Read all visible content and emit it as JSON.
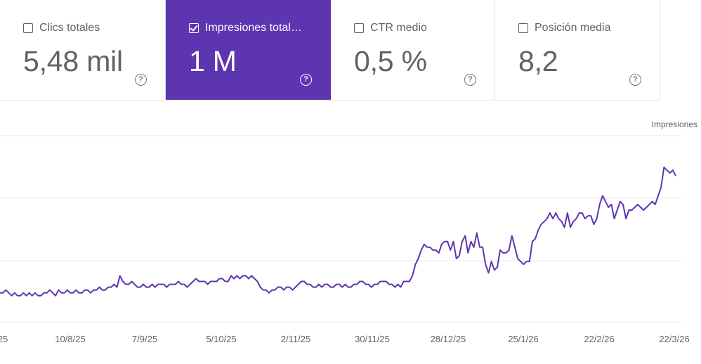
{
  "metrics": [
    {
      "label": "Clics totales",
      "value": "5,48 mil",
      "checked": false
    },
    {
      "label": "Impresiones total…",
      "value": "1 M",
      "checked": true
    },
    {
      "label": "CTR medio",
      "value": "0,5 %",
      "checked": false
    },
    {
      "label": "Posición media",
      "value": "8,2",
      "checked": false
    }
  ],
  "colors": {
    "accent": "#5e35b1",
    "line": "#5e35b1",
    "grid": "#e8e8e8",
    "text": "#5f6368"
  },
  "chart_data": {
    "type": "line",
    "series_label": "Impresiones",
    "x_tick_labels": [
      "25",
      "10/8/25",
      "7/9/25",
      "5/10/25",
      "2/11/25",
      "30/11/25",
      "28/12/25",
      "25/1/26",
      "22/2/26",
      "22/3/26"
    ],
    "grid": true,
    "y_relative": [
      4,
      4,
      5,
      4,
      3,
      4,
      3,
      3,
      4,
      3,
      4,
      3,
      4,
      3,
      3,
      4,
      4,
      5,
      4,
      3,
      5,
      4,
      4,
      5,
      4,
      4,
      5,
      4,
      4,
      5,
      5,
      4,
      5,
      5,
      6,
      5,
      5,
      6,
      6,
      7,
      6,
      10,
      8,
      7,
      7,
      8,
      7,
      6,
      6,
      7,
      6,
      6,
      7,
      6,
      7,
      7,
      7,
      6,
      7,
      7,
      7,
      8,
      7,
      7,
      6,
      7,
      8,
      9,
      8,
      8,
      8,
      7,
      8,
      8,
      8,
      9,
      9,
      8,
      8,
      10,
      9,
      10,
      9,
      10,
      10,
      9,
      10,
      9,
      8,
      6,
      5,
      5,
      4,
      5,
      5,
      6,
      6,
      5,
      6,
      6,
      5,
      6,
      7,
      8,
      8,
      7,
      7,
      6,
      6,
      7,
      6,
      7,
      7,
      6,
      6,
      7,
      7,
      6,
      7,
      6,
      6,
      7,
      7,
      8,
      8,
      7,
      7,
      6,
      7,
      7,
      8,
      8,
      8,
      7,
      7,
      6,
      7,
      6,
      8,
      8,
      8,
      10,
      14,
      16,
      19,
      21,
      20,
      20,
      19,
      19,
      18,
      21,
      22,
      22,
      19,
      22,
      16,
      17,
      22,
      24,
      18,
      22,
      20,
      25,
      20,
      20,
      14,
      11,
      15,
      12,
      13,
      19,
      18,
      18,
      19,
      24,
      20,
      16,
      15,
      14,
      15,
      15,
      22,
      23,
      26,
      28,
      29,
      30,
      32,
      30,
      32,
      30,
      29,
      27,
      32,
      27,
      29,
      30,
      32,
      32,
      30,
      31,
      31,
      28,
      30,
      35,
      38,
      36,
      34,
      35,
      30,
      33,
      36,
      35,
      30,
      33,
      33,
      34,
      35,
      34,
      33,
      34,
      35,
      36,
      35,
      38,
      41,
      48,
      47,
      46,
      47,
      45
    ]
  }
}
